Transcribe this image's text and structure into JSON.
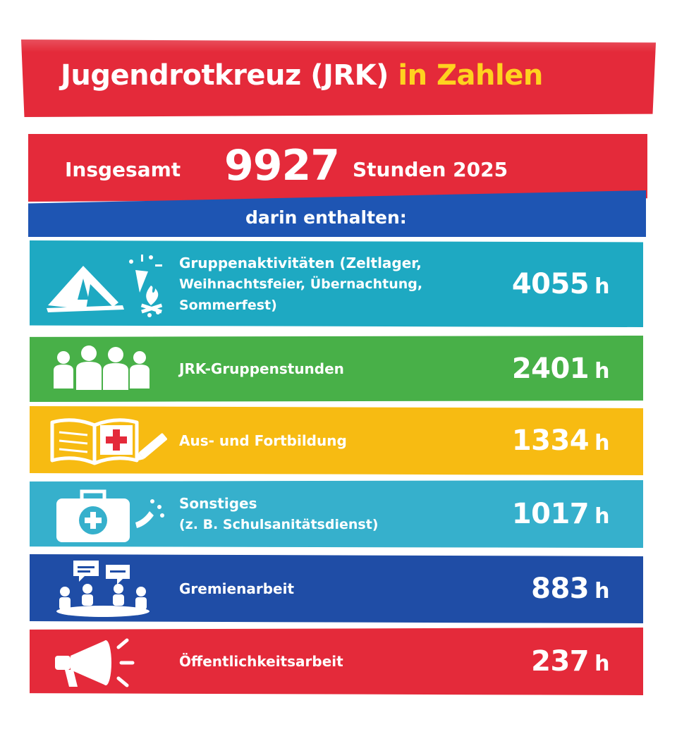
{
  "header": {
    "title_main": "Jugendrotkreuz (JRK)",
    "title_accent": "in Zahlen"
  },
  "total": {
    "label": "Insgesamt",
    "number": "9927",
    "unit_year": "Stunden 2025"
  },
  "subheader": {
    "text": "darin enthalten:"
  },
  "categories": [
    {
      "label_line1": "Gruppenaktivitäten (Zeltlager,",
      "label_line2": "Weihnachtsfeier, Übernachtung, Sommerfest)",
      "value": "4055",
      "unit": "h",
      "icon": "tent-party-campfire-icon",
      "color": "#1ea9c2"
    },
    {
      "label_line1": "JRK-Gruppenstunden",
      "label_line2": "",
      "value": "2401",
      "unit": "h",
      "icon": "group-people-icon",
      "color": "#48b048"
    },
    {
      "label_line1": "Aus- und Fortbildung",
      "label_line2": "",
      "value": "1334",
      "unit": "h",
      "icon": "book-red-cross-pencil-icon",
      "color": "#f7bb12"
    },
    {
      "label_line1": "Sonstiges",
      "label_line2": "(z. B. Schulsanitätsdienst)",
      "value": "1017",
      "unit": "h",
      "icon": "first-aid-kit-icon",
      "color": "#36b0cc"
    },
    {
      "label_line1": "Gremienarbeit",
      "label_line2": "",
      "value": "883",
      "unit": "h",
      "icon": "meeting-table-speech-bubbles-icon",
      "color": "#1f4da6"
    },
    {
      "label_line1": "Öffentlichkeitsarbeit",
      "label_line2": "",
      "value": "237",
      "unit": "h",
      "icon": "megaphone-icon",
      "color": "#e42a3a"
    }
  ],
  "colors": {
    "red": "#e42a3a",
    "accent_yellow": "#ffd21f",
    "blue": "#1e55b3"
  }
}
